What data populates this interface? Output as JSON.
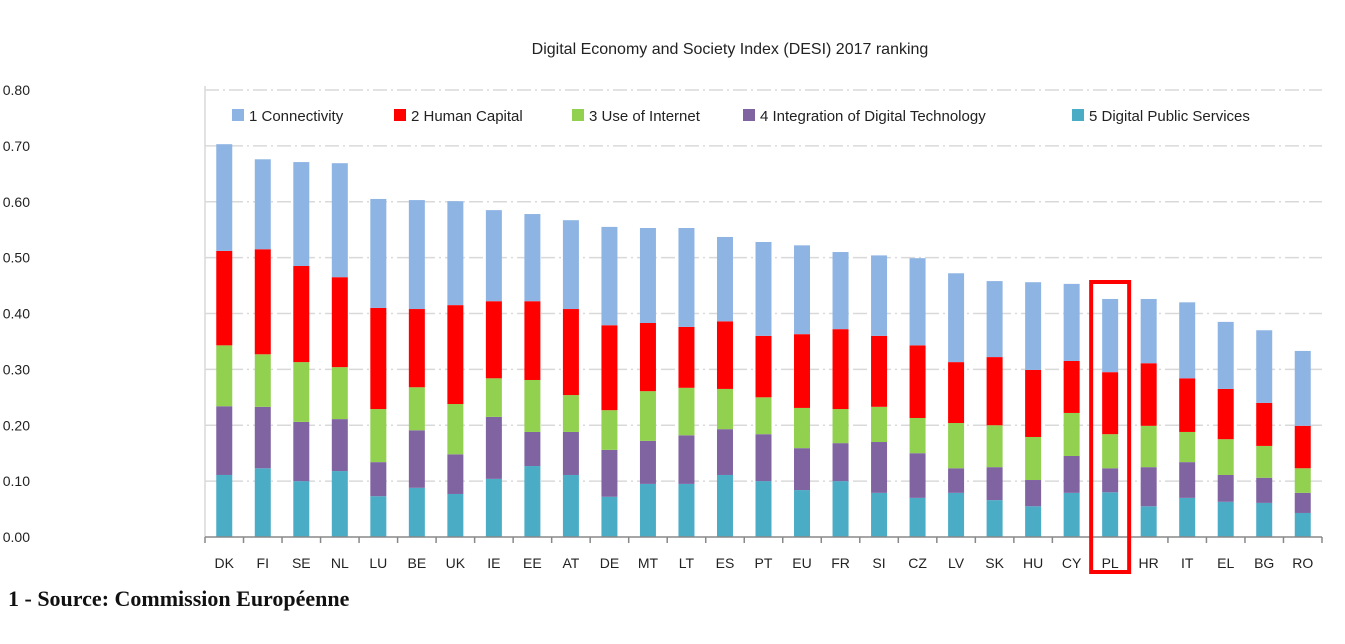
{
  "chart_data": {
    "type": "bar",
    "stacked": true,
    "title": "Digital Economy and Society Index (DESI) 2017 ranking",
    "xlabel": "",
    "ylabel": "",
    "ylim": [
      0,
      0.8
    ],
    "yticks": [
      "0.00",
      "0.10",
      "0.20",
      "0.30",
      "0.40",
      "0.50",
      "0.60",
      "0.70",
      "0.80"
    ],
    "grid": true,
    "legend_position": "top",
    "categories": [
      "DK",
      "FI",
      "SE",
      "NL",
      "LU",
      "BE",
      "UK",
      "IE",
      "EE",
      "AT",
      "DE",
      "MT",
      "LT",
      "ES",
      "PT",
      "EU",
      "FR",
      "SI",
      "CZ",
      "LV",
      "SK",
      "HU",
      "CY",
      "PL",
      "HR",
      "IT",
      "EL",
      "BG",
      "RO"
    ],
    "highlight": "PL",
    "highlight_color": "#ff0000",
    "series": [
      {
        "name": "1 Connectivity",
        "color": "#8eb4e3",
        "values": [
          0.191,
          0.161,
          0.186,
          0.204,
          0.195,
          0.195,
          0.186,
          0.163,
          0.156,
          0.159,
          0.176,
          0.17,
          0.177,
          0.151,
          0.168,
          0.159,
          0.138,
          0.144,
          0.156,
          0.159,
          0.136,
          0.157,
          0.138,
          0.131,
          0.115,
          0.136,
          0.12,
          0.13,
          0.134
        ]
      },
      {
        "name": "2 Human Capital",
        "color": "#ff0000",
        "values": [
          0.169,
          0.188,
          0.172,
          0.161,
          0.181,
          0.14,
          0.177,
          0.138,
          0.141,
          0.154,
          0.152,
          0.122,
          0.109,
          0.121,
          0.11,
          0.132,
          0.143,
          0.127,
          0.13,
          0.109,
          0.122,
          0.12,
          0.093,
          0.111,
          0.112,
          0.096,
          0.09,
          0.077,
          0.076
        ]
      },
      {
        "name": "3 Use of Internet",
        "color": "#92d050",
        "values": [
          0.109,
          0.094,
          0.107,
          0.093,
          0.095,
          0.077,
          0.09,
          0.069,
          0.093,
          0.066,
          0.071,
          0.089,
          0.085,
          0.072,
          0.066,
          0.072,
          0.061,
          0.063,
          0.063,
          0.081,
          0.075,
          0.077,
          0.077,
          0.061,
          0.074,
          0.054,
          0.064,
          0.057,
          0.044
        ]
      },
      {
        "name": "4 Integration of Digital Technology",
        "color": "#8064a2",
        "values": [
          0.123,
          0.11,
          0.106,
          0.093,
          0.061,
          0.103,
          0.071,
          0.111,
          0.061,
          0.077,
          0.084,
          0.077,
          0.087,
          0.082,
          0.084,
          0.075,
          0.068,
          0.091,
          0.08,
          0.044,
          0.059,
          0.047,
          0.066,
          0.043,
          0.07,
          0.064,
          0.048,
          0.045,
          0.036
        ]
      },
      {
        "name": "5 Digital Public Services",
        "color": "#4bacc6",
        "values": [
          0.111,
          0.123,
          0.1,
          0.118,
          0.073,
          0.088,
          0.077,
          0.104,
          0.127,
          0.111,
          0.072,
          0.095,
          0.095,
          0.111,
          0.1,
          0.084,
          0.1,
          0.079,
          0.07,
          0.079,
          0.066,
          0.055,
          0.079,
          0.08,
          0.055,
          0.07,
          0.063,
          0.061,
          0.043
        ]
      }
    ]
  },
  "caption": "1 - Source: Commission Européenne"
}
